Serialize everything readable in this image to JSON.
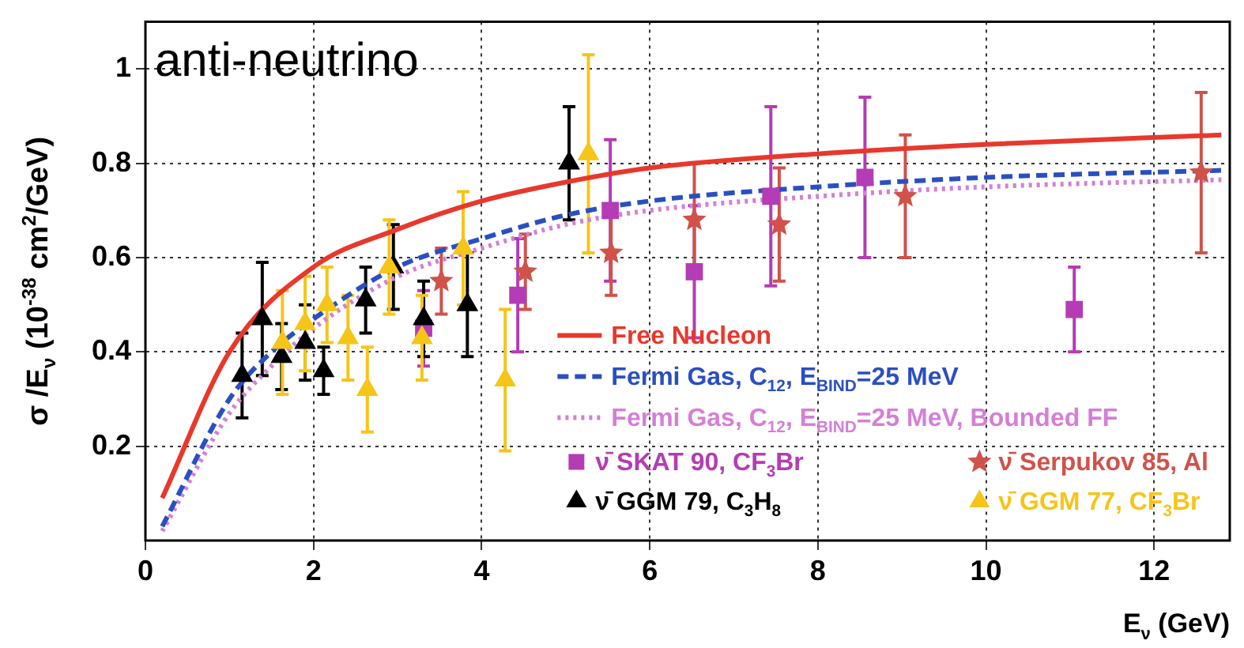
{
  "chart_data": {
    "type": "scatter",
    "title": "anti-neutrino",
    "xlabel": "E$_{ν}$ (GeV)",
    "ylabel": "σ /E$_{ν}$ (10$^{-38}$ cm$^{2}$/GeV)",
    "xlim": [
      0,
      12.9
    ],
    "xticks": [
      0,
      2,
      4,
      6,
      8,
      10,
      12
    ],
    "ylim": [
      0,
      1.1
    ],
    "yticks": [
      0.2,
      0.4,
      0.6,
      0.8,
      1
    ],
    "grid": true,
    "legend": "bottom right",
    "series": [
      {
        "name": "Free Nucleon",
        "type": "line",
        "line_style": "solid",
        "marker": "none",
        "color": "#e8382c",
        "x": [
          0.2,
          1,
          2,
          3,
          4,
          5,
          6,
          8,
          10,
          12.8
        ],
        "values": [
          0.09,
          0.4,
          0.58,
          0.66,
          0.72,
          0.76,
          0.79,
          0.82,
          0.84,
          0.86
        ]
      },
      {
        "name": "Fermi Gas, C$_{12}$, E$_{BIND}$=25 MeV",
        "type": "line",
        "line_style": "dashed",
        "marker": "none",
        "color": "#2a4fc0",
        "x": [
          0.2,
          1,
          1.5,
          2,
          3,
          4,
          5,
          6,
          8,
          10,
          12.8
        ],
        "values": [
          0.03,
          0.3,
          0.4,
          0.47,
          0.58,
          0.64,
          0.69,
          0.72,
          0.75,
          0.77,
          0.785
        ]
      },
      {
        "name": "Fermi Gas, C$_{12}$, E$_{BIND}$=25 MeV, Bounded FF",
        "type": "line",
        "line_style": "dotted",
        "marker": "none",
        "color": "#d47fd6",
        "x": [
          0.2,
          1,
          1.5,
          2,
          3,
          4,
          5,
          6,
          8,
          10,
          12.8
        ],
        "values": [
          0.02,
          0.27,
          0.37,
          0.45,
          0.56,
          0.62,
          0.67,
          0.7,
          0.73,
          0.75,
          0.765
        ]
      },
      {
        "name": "ν̄ SKAT 90, CF$_{3}$Br",
        "marker": "square",
        "color": "#b43cb4",
        "x": [
          3.31,
          4.43,
          5.53,
          6.53,
          7.44,
          8.56,
          11.05
        ],
        "values": [
          0.45,
          0.52,
          0.7,
          0.57,
          0.73,
          0.77,
          0.49
        ],
        "errors": [
          0.08,
          0.12,
          0.15,
          0.14,
          0.19,
          0.17,
          0.09
        ]
      },
      {
        "name": "ν̄ Serpukov 85, Al",
        "marker": "star",
        "color": "#d0524a",
        "x": [
          3.52,
          4.52,
          5.54,
          6.53,
          7.54,
          9.04,
          12.56
        ],
        "values": [
          0.55,
          0.57,
          0.61,
          0.68,
          0.67,
          0.73,
          0.78
        ],
        "errors": [
          0.07,
          0.08,
          0.09,
          0.12,
          0.12,
          0.13,
          0.17
        ]
      },
      {
        "name": "ν̄ GGM 79, C$_{3}$H$_{8}$",
        "marker": "triangle",
        "color": "#000000",
        "x": [
          1.15,
          1.39,
          1.62,
          1.9,
          2.12,
          2.62,
          2.95,
          3.31,
          3.83,
          5.04
        ],
        "values": [
          0.35,
          0.47,
          0.39,
          0.42,
          0.36,
          0.51,
          0.58,
          0.47,
          0.5,
          0.8
        ],
        "errors": [
          0.09,
          0.12,
          0.07,
          0.08,
          0.05,
          0.07,
          0.09,
          0.08,
          0.11,
          0.12
        ]
      },
      {
        "name": "ν̄ GGM 77, CF$_{3}$Br",
        "marker": "triangle",
        "color": "#f5c518",
        "x": [
          1.63,
          1.9,
          2.16,
          2.41,
          2.64,
          2.9,
          3.29,
          3.78,
          4.28,
          5.27
        ],
        "values": [
          0.42,
          0.46,
          0.5,
          0.43,
          0.32,
          0.58,
          0.43,
          0.62,
          0.34,
          0.82
        ],
        "errors": [
          0.11,
          0.1,
          0.08,
          0.09,
          0.09,
          0.1,
          0.09,
          0.12,
          0.15,
          0.21
        ]
      }
    ]
  }
}
